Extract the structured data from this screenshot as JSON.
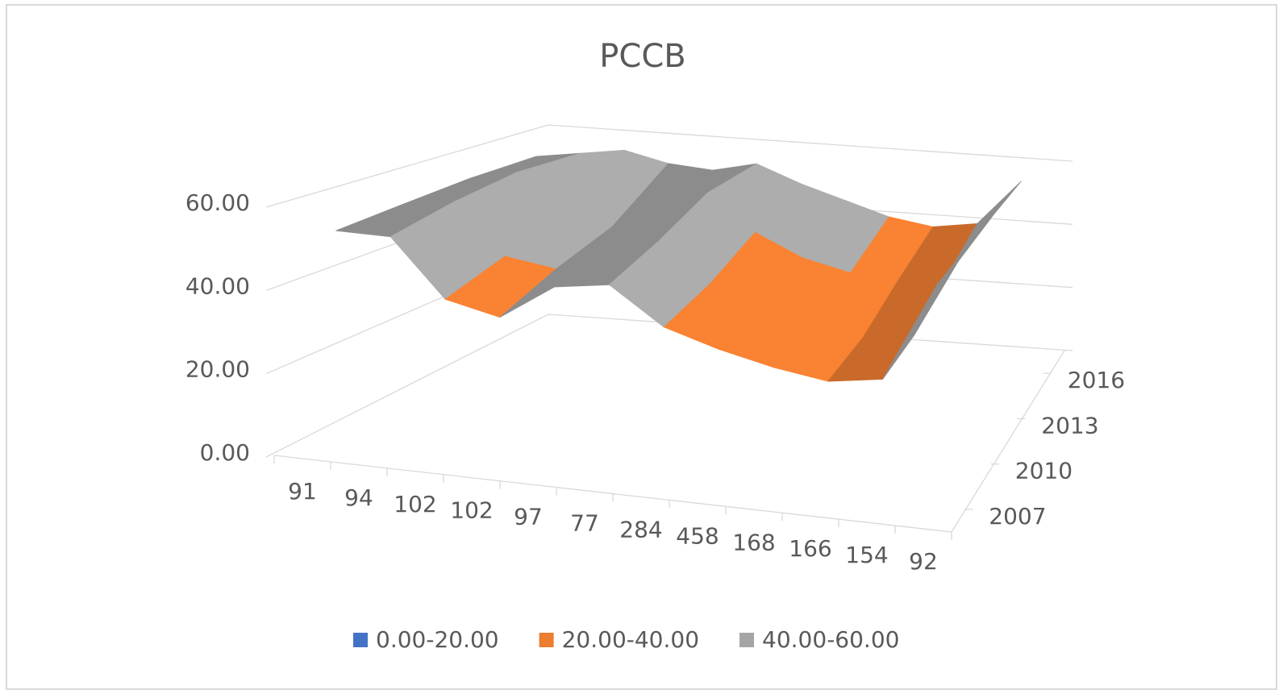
{
  "chart_data": {
    "type": "surface3d",
    "title": "PCCB",
    "categories": [
      "91",
      "94",
      "102",
      "102",
      "97",
      "77",
      "284",
      "458",
      "168",
      "166",
      "154",
      "92"
    ],
    "series": [
      {
        "name": "2007",
        "values": [
          52,
          52,
          38,
          35,
          44,
          46,
          37,
          33,
          30,
          28,
          30,
          55
        ]
      },
      {
        "name": "2010",
        "values": [
          53,
          55,
          42,
          40,
          47,
          50,
          40,
          34,
          32,
          30,
          32,
          56
        ]
      },
      {
        "name": "2013",
        "values": [
          54,
          57,
          48,
          44,
          52,
          56,
          46,
          40,
          37,
          36,
          38,
          57
        ]
      },
      {
        "name": "2016",
        "values": [
          54,
          56,
          58,
          55,
          54,
          57,
          52,
          48,
          44,
          42,
          44,
          58
        ]
      }
    ],
    "zlim": [
      0,
      60
    ],
    "zticks": [
      {
        "value": 0,
        "label": "0.00"
      },
      {
        "value": 20,
        "label": "20.00"
      },
      {
        "value": 40,
        "label": "40.00"
      },
      {
        "value": 60,
        "label": "60.00"
      }
    ],
    "bands": [
      {
        "label": "0.00-20.00",
        "color": "#4472c4"
      },
      {
        "label": "20.00-40.00",
        "color": "#ed7d31"
      },
      {
        "label": "40.00-60.00",
        "color": "#a5a5a5"
      }
    ],
    "grid": true
  }
}
